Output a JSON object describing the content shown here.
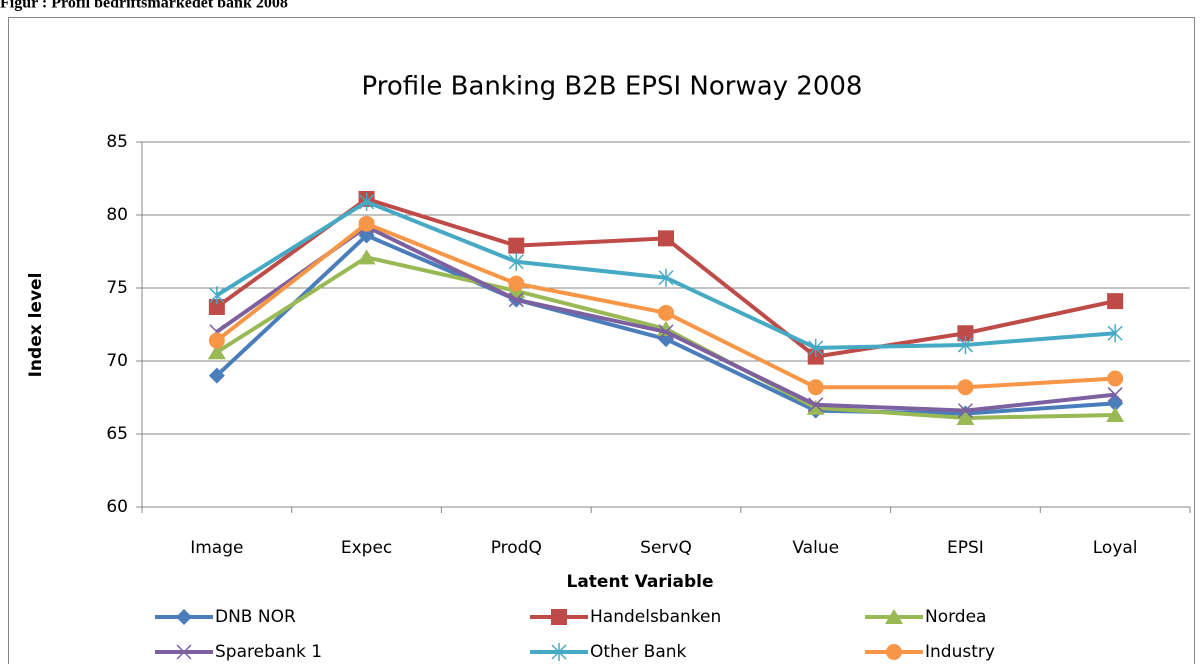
{
  "caption": "Figur : Profil bedriftsmarkedet bank 2008",
  "chart_data": {
    "type": "line",
    "title": "Profile Banking B2B EPSI Norway 2008",
    "x_label": "Latent Variable",
    "y_label": "Index level",
    "categories": [
      "Image",
      "Expec",
      "ProdQ",
      "ServQ",
      "Value",
      "EPSI",
      "Loyal"
    ],
    "ylim": [
      60,
      85
    ],
    "yticks": [
      60,
      65,
      70,
      75,
      80,
      85
    ],
    "grid": true,
    "series": [
      {
        "name": "DNB NOR",
        "color": "#4a7ebb",
        "marker": "diamond",
        "values": [
          69.0,
          78.6,
          74.2,
          71.5,
          66.6,
          66.4,
          67.1
        ]
      },
      {
        "name": "Handelsbanken",
        "color": "#be4b48",
        "marker": "square",
        "values": [
          73.7,
          81.1,
          77.9,
          78.4,
          70.3,
          71.9,
          74.1
        ]
      },
      {
        "name": "Nordea",
        "color": "#98b954",
        "marker": "triangle",
        "values": [
          70.6,
          77.1,
          74.8,
          72.2,
          66.8,
          66.1,
          66.3
        ]
      },
      {
        "name": "Sparebank 1",
        "color": "#7d60a0",
        "marker": "x",
        "values": [
          72.0,
          79.2,
          74.2,
          72.0,
          67.0,
          66.6,
          67.7
        ]
      },
      {
        "name": "Other Bank",
        "color": "#46aac5",
        "marker": "star",
        "values": [
          74.5,
          80.9,
          76.8,
          75.7,
          70.9,
          71.1,
          71.9
        ]
      },
      {
        "name": "Industry",
        "color": "#f79646",
        "marker": "circle",
        "values": [
          71.4,
          79.4,
          75.3,
          73.3,
          68.2,
          68.2,
          68.8
        ]
      }
    ]
  }
}
